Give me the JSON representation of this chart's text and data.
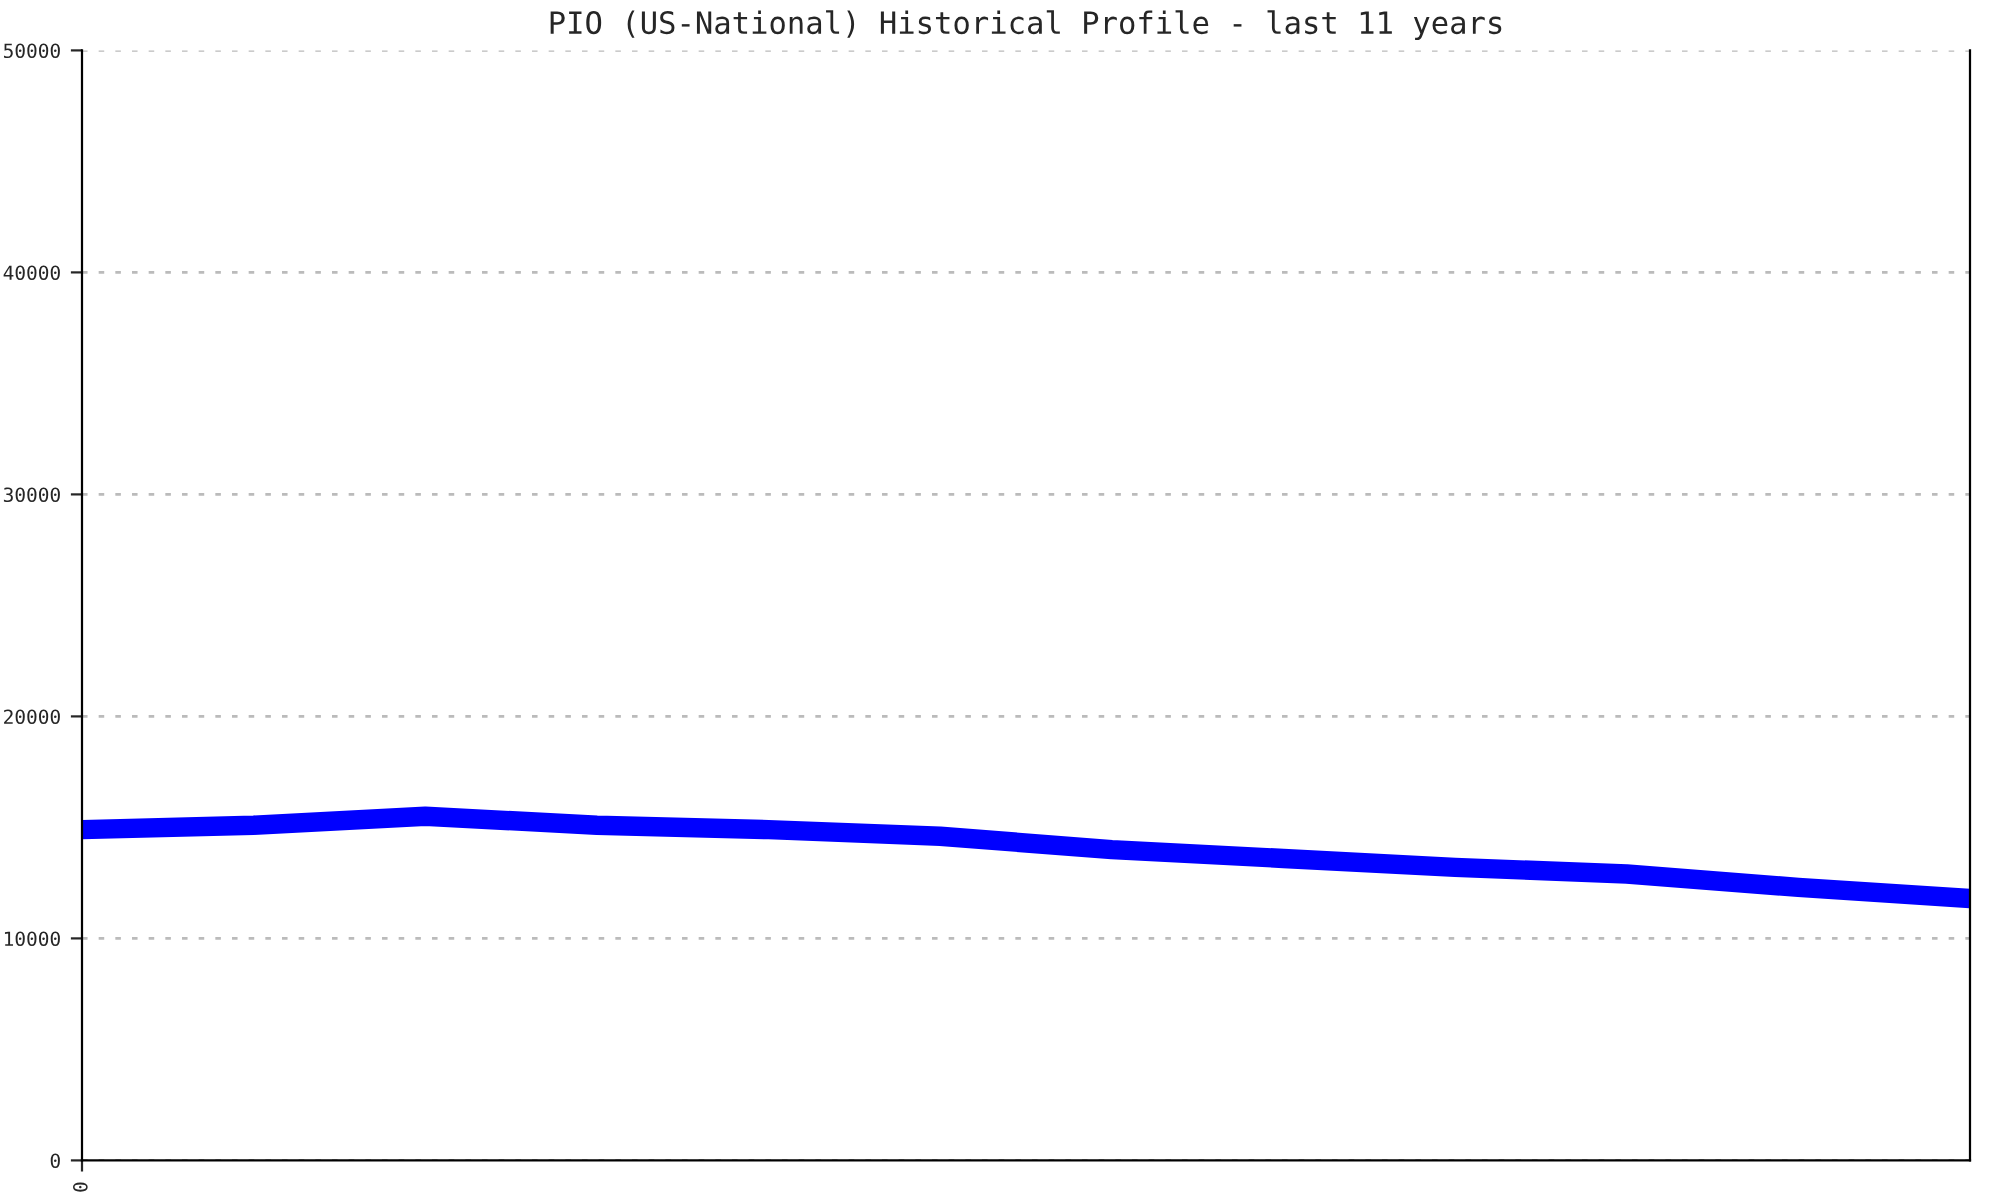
{
  "chart_data": {
    "type": "line",
    "title": "PIO (US-National) Historical Profile - last 11 years",
    "categories": [
      "0",
      null,
      null,
      null,
      null,
      null,
      null,
      null,
      null,
      null,
      null,
      null
    ],
    "series": [
      {
        "color": "#0000ff",
        "values": [
          14900,
          15100,
          15500,
          15100,
          14900,
          14600,
          14000,
          13600,
          13200,
          12900,
          12300,
          11800
        ]
      }
    ],
    "ylim": [
      0,
      50000
    ],
    "yticks": [
      0,
      10000,
      20000,
      30000,
      40000,
      50000
    ],
    "grid": "y",
    "marker": "none",
    "line_style": "solid"
  }
}
